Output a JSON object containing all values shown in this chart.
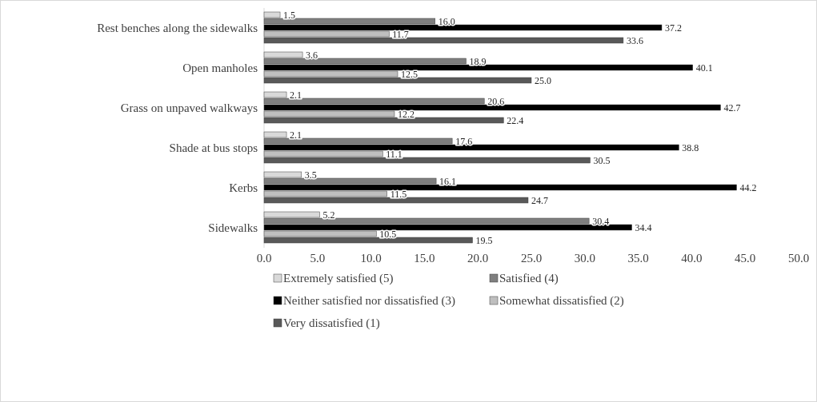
{
  "chart_data": {
    "type": "bar",
    "orientation": "horizontal",
    "categories": [
      "Rest benches along the sidewalks",
      "Open manholes",
      "Grass on unpaved walkways",
      "Shade at bus stops",
      "Kerbs",
      "Sidewalks"
    ],
    "series": [
      {
        "name": "Extremely satisfied (5)",
        "color": "#d9d9d9",
        "values": [
          1.5,
          3.6,
          2.1,
          2.1,
          3.5,
          5.2
        ],
        "value_labels": [
          "1.5",
          "3.6",
          "2.1",
          "2.1",
          "3.5",
          "5.2"
        ]
      },
      {
        "name": "Satisfied (4)",
        "color": "#7f7f7f",
        "values": [
          16.0,
          18.9,
          20.6,
          17.6,
          16.1,
          30.4
        ],
        "value_labels": [
          "16.0",
          "18.9",
          "20.6",
          "17.6",
          "16.1",
          "30.4"
        ]
      },
      {
        "name": "Neither satisfied nor dissatisfied (3)",
        "color": "#000000",
        "values": [
          37.2,
          40.1,
          42.7,
          38.8,
          44.2,
          34.4
        ],
        "value_labels": [
          "37.2",
          "40.1",
          "42.7",
          "38.8",
          "44.2",
          "34.4"
        ]
      },
      {
        "name": "Somewhat dissatisfied (2)",
        "color": "#bfbfbf",
        "values": [
          11.7,
          12.5,
          12.2,
          11.1,
          11.5,
          10.5
        ],
        "value_labels": [
          "11.7",
          "12.5",
          "12.2",
          "11.1",
          "11.5",
          "10.5"
        ]
      },
      {
        "name": "Very dissatisfied (1)",
        "color": "#595959",
        "values": [
          33.6,
          25.0,
          22.4,
          30.5,
          24.7,
          19.5
        ],
        "value_labels": [
          "33.6",
          "25.0",
          "22.4",
          "30.5",
          "24.7",
          "19.5"
        ]
      }
    ],
    "xlim": [
      0,
      50
    ],
    "xticks": [
      {
        "value": 0,
        "label": "0.0"
      },
      {
        "value": 5,
        "label": "5.0"
      },
      {
        "value": 10,
        "label": "10.0"
      },
      {
        "value": 15,
        "label": "15.0"
      },
      {
        "value": 20,
        "label": "20.0"
      },
      {
        "value": 25,
        "label": "25.0"
      },
      {
        "value": 30,
        "label": "30.0"
      },
      {
        "value": 35,
        "label": "35.0"
      },
      {
        "value": 40,
        "label": "40.0"
      },
      {
        "value": 45,
        "label": "45.0"
      },
      {
        "value": 50,
        "label": "50.0"
      }
    ],
    "grid": false,
    "legend": "bottom"
  }
}
